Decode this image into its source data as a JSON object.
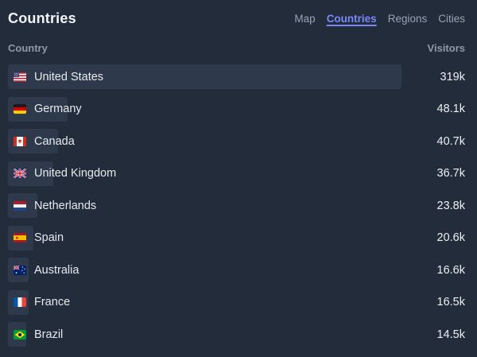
{
  "panel": {
    "title": "Countries",
    "tabs": [
      {
        "label": "Map",
        "active": false
      },
      {
        "label": "Countries",
        "active": true
      },
      {
        "label": "Regions",
        "active": false
      },
      {
        "label": "Cities",
        "active": false
      }
    ],
    "columns": {
      "dimension": "Country",
      "metric": "Visitors"
    }
  },
  "table": {
    "rows": [
      {
        "country": "United States",
        "code": "us",
        "flag_icon": "us-flag-icon",
        "visitors": "319k",
        "visitors_num": 319000
      },
      {
        "country": "Germany",
        "code": "de",
        "flag_icon": "de-flag-icon",
        "visitors": "48.1k",
        "visitors_num": 48100
      },
      {
        "country": "Canada",
        "code": "ca",
        "flag_icon": "ca-flag-icon",
        "visitors": "40.7k",
        "visitors_num": 40700
      },
      {
        "country": "United Kingdom",
        "code": "gb",
        "flag_icon": "gb-flag-icon",
        "visitors": "36.7k",
        "visitors_num": 36700
      },
      {
        "country": "Netherlands",
        "code": "nl",
        "flag_icon": "nl-flag-icon",
        "visitors": "23.8k",
        "visitors_num": 23800
      },
      {
        "country": "Spain",
        "code": "es",
        "flag_icon": "es-flag-icon",
        "visitors": "20.6k",
        "visitors_num": 20600
      },
      {
        "country": "Australia",
        "code": "au",
        "flag_icon": "au-flag-icon",
        "visitors": "16.6k",
        "visitors_num": 16600
      },
      {
        "country": "France",
        "code": "fr",
        "flag_icon": "fr-flag-icon",
        "visitors": "16.5k",
        "visitors_num": 16500
      },
      {
        "country": "Brazil",
        "code": "br",
        "flag_icon": "br-flag-icon",
        "visitors": "14.5k",
        "visitors_num": 14500
      }
    ]
  },
  "chart_data": {
    "type": "bar",
    "title": "Countries",
    "categories": [
      "United States",
      "Germany",
      "Canada",
      "United Kingdom",
      "Netherlands",
      "Spain",
      "Australia",
      "France",
      "Brazil"
    ],
    "values": [
      319000,
      48100,
      40700,
      36700,
      23800,
      20600,
      16600,
      16500,
      14500
    ],
    "value_labels": [
      "319k",
      "48.1k",
      "40.7k",
      "36.7k",
      "23.8k",
      "20.6k",
      "16.6k",
      "16.5k",
      "14.5k"
    ],
    "xlabel": "Visitors",
    "ylabel": "Country",
    "orientation": "horizontal",
    "grid": false,
    "legend_position": "none"
  },
  "colors": {
    "background": "#232c3b",
    "bar": "#2e3a4b",
    "accent": "#7b87f7",
    "title_text": "#f3f5f8",
    "muted_text": "#8e99a8",
    "row_text": "#e7eaee",
    "value_text": "#edf0f3"
  }
}
